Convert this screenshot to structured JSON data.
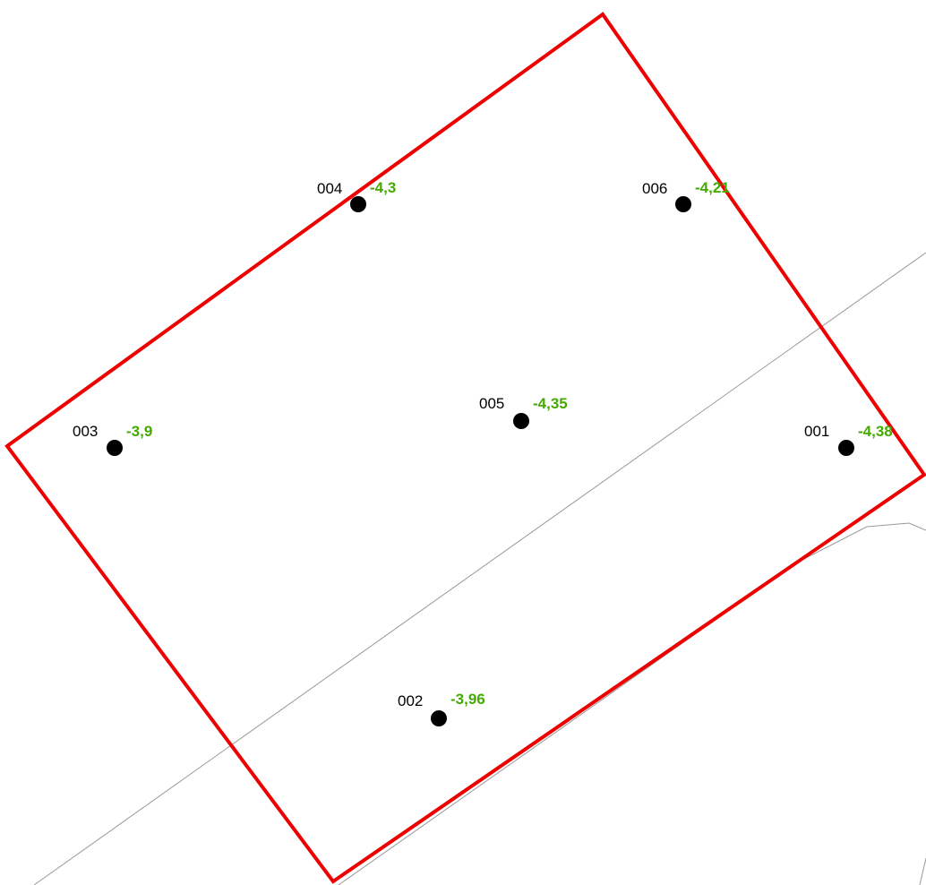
{
  "map": {
    "colors": {
      "background": "#ffffff",
      "boundary": "#ee0000",
      "reference_line": "#999999",
      "point": "#000000",
      "value_text": "#44aa00",
      "id_text": "#000000"
    },
    "points": [
      {
        "id": "001",
        "value": "-4,38"
      },
      {
        "id": "002",
        "value": "-3,96"
      },
      {
        "id": "003",
        "value": "-3,9"
      },
      {
        "id": "004",
        "value": "-4,3"
      },
      {
        "id": "005",
        "value": "-4,35"
      },
      {
        "id": "006",
        "value": "-4,21"
      }
    ]
  }
}
